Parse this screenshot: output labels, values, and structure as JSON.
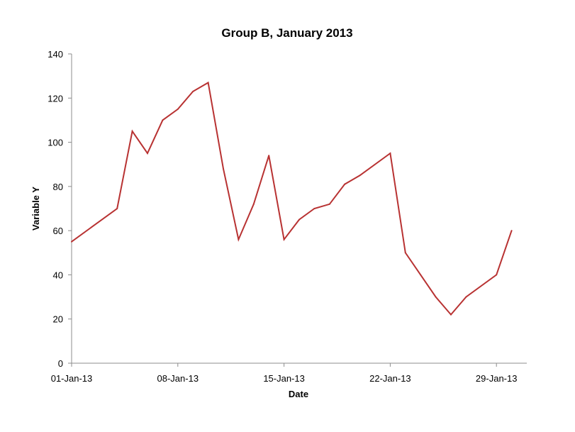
{
  "colors": {
    "series": "#b83232",
    "axis": "#8c8c8c"
  },
  "chart_data": {
    "type": "line",
    "title": "Group B, January 2013",
    "xlabel": "Date",
    "ylabel": "Variable  Y",
    "ylim": [
      0,
      140
    ],
    "y_ticks": [
      0,
      20,
      40,
      60,
      80,
      100,
      120,
      140
    ],
    "x_range": [
      "2013-01-01",
      "2013-01-31"
    ],
    "x_ticks": [
      {
        "date": "2013-01-01",
        "label": "01-Jan-13"
      },
      {
        "date": "2013-01-08",
        "label": "08-Jan-13"
      },
      {
        "date": "2013-01-15",
        "label": "15-Jan-13"
      },
      {
        "date": "2013-01-22",
        "label": "22-Jan-13"
      },
      {
        "date": "2013-01-29",
        "label": "29-Jan-13"
      }
    ],
    "grid": false,
    "legend": "none",
    "series": [
      {
        "x": [
          "2013-01-01",
          "2013-01-04",
          "2013-01-05",
          "2013-01-06",
          "2013-01-07",
          "2013-01-08",
          "2013-01-09",
          "2013-01-10",
          "2013-01-11",
          "2013-01-12",
          "2013-01-13",
          "2013-01-14",
          "2013-01-15",
          "2013-01-16",
          "2013-01-17",
          "2013-01-18",
          "2013-01-19",
          "2013-01-20",
          "2013-01-22",
          "2013-01-23",
          "2013-01-24",
          "2013-01-25",
          "2013-01-26",
          "2013-01-27",
          "2013-01-29",
          "2013-01-30"
        ],
        "values": [
          55,
          70,
          105,
          95,
          110,
          115,
          123,
          127,
          88,
          56,
          72,
          94,
          56,
          65,
          70,
          72,
          81,
          85,
          95,
          50,
          40,
          30,
          22,
          30,
          40,
          60
        ]
      }
    ]
  }
}
